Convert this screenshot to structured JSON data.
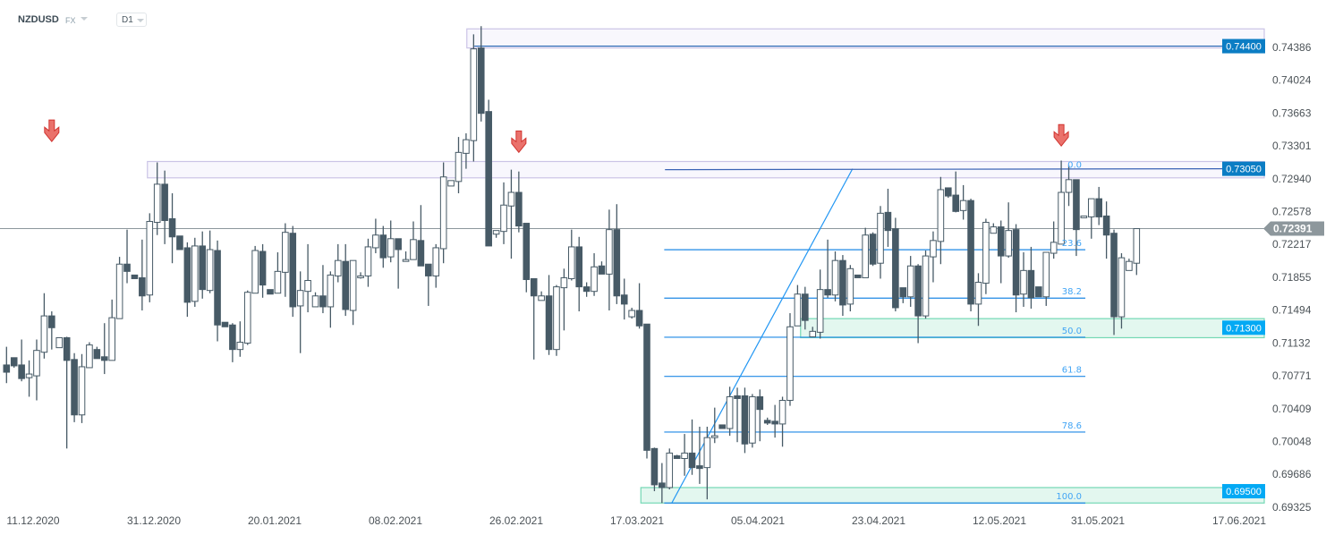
{
  "header": {
    "symbol": "NZDUSD",
    "market": "FX",
    "timeframe": "D1"
  },
  "colors": {
    "bear": "#475a66",
    "bull_fill": "#ffffff",
    "fib": "#1e88e5",
    "fib_label": "#42a5f5",
    "resistance_zone": "#f8f7fd",
    "resistance_stroke": "#cbc4e6",
    "support_zone": "#e3f7ef",
    "support_stroke": "#74d8b4",
    "level_dark_blue": "#0b7dc4",
    "level_light_blue": "#03a9f4",
    "current_price": "#8d979c",
    "arrow": "#e8625c"
  },
  "chart_data": {
    "type": "candlestick",
    "title": "",
    "y_ticks": [
      "0.74386",
      "0.74024",
      "0.73663",
      "0.73301",
      "0.72940",
      "0.72578",
      "0.72217",
      "0.71855",
      "0.71494",
      "0.71132",
      "0.70771",
      "0.70409",
      "0.70048",
      "0.69686",
      "0.69325"
    ],
    "ylim": [
      0.69325,
      0.74386
    ],
    "x_ticks": [
      {
        "label": "11.12.2020",
        "bar": 3.5
      },
      {
        "label": "31.12.2020",
        "bar": 19.6
      },
      {
        "label": "20.01.2021",
        "bar": 35.6
      },
      {
        "label": "08.02.2021",
        "bar": 51.6
      },
      {
        "label": "26.02.2021",
        "bar": 67.7
      },
      {
        "label": "17.03.2021",
        "bar": 83.7
      },
      {
        "label": "05.04.2021",
        "bar": 99.7
      },
      {
        "label": "23.04.2021",
        "bar": 115.8
      },
      {
        "label": "12.05.2021",
        "bar": 131.8
      },
      {
        "label": "31.05.2021",
        "bar": 144.9
      },
      {
        "label": "17.06.2021",
        "bar": 163.6
      }
    ],
    "ohlc": [
      [
        0.7089,
        0.7109,
        0.7069,
        0.7081
      ],
      [
        0.7097,
        0.7097,
        0.7086,
        0.7088
      ],
      [
        0.7089,
        0.7117,
        0.7071,
        0.7074
      ],
      [
        0.7075,
        0.7094,
        0.7054,
        0.7079
      ],
      [
        0.7077,
        0.7117,
        0.705,
        0.7105
      ],
      [
        0.7103,
        0.7168,
        0.7096,
        0.7143
      ],
      [
        0.7143,
        0.7148,
        0.7106,
        0.713
      ],
      [
        0.7108,
        0.7119,
        0.7108,
        0.7119
      ],
      [
        0.7119,
        0.712,
        0.6997,
        0.7094
      ],
      [
        0.7095,
        0.7102,
        0.7026,
        0.7034
      ],
      [
        0.7034,
        0.7101,
        0.7025,
        0.7087
      ],
      [
        0.7086,
        0.7114,
        0.7086,
        0.7111
      ],
      [
        0.7106,
        0.7109,
        0.7096,
        0.7096
      ],
      [
        0.7098,
        0.7135,
        0.7079,
        0.7094
      ],
      [
        0.7094,
        0.7161,
        0.7094,
        0.7141
      ],
      [
        0.714,
        0.7208,
        0.714,
        0.72
      ],
      [
        0.72,
        0.7238,
        0.7179,
        0.7192
      ],
      [
        0.7188,
        0.7188,
        0.7184,
        0.7184
      ],
      [
        0.7185,
        0.7227,
        0.7149,
        0.7165
      ],
      [
        0.7166,
        0.7256,
        0.7158,
        0.7247
      ],
      [
        0.7246,
        0.7312,
        0.7232,
        0.7288
      ],
      [
        0.7288,
        0.7303,
        0.7222,
        0.7248
      ],
      [
        0.725,
        0.7278,
        0.7201,
        0.723
      ],
      [
        0.7231,
        0.7231,
        0.7216,
        0.7216
      ],
      [
        0.7218,
        0.7224,
        0.7142,
        0.7158
      ],
      [
        0.7159,
        0.7229,
        0.7153,
        0.722
      ],
      [
        0.722,
        0.7236,
        0.7162,
        0.7172
      ],
      [
        0.7171,
        0.7237,
        0.7168,
        0.7216
      ],
      [
        0.7215,
        0.7226,
        0.7115,
        0.7133
      ],
      [
        0.7136,
        0.7136,
        0.7131,
        0.7131
      ],
      [
        0.7133,
        0.7135,
        0.7092,
        0.7106
      ],
      [
        0.7106,
        0.7137,
        0.7098,
        0.7114
      ],
      [
        0.7113,
        0.7171,
        0.7111,
        0.7169
      ],
      [
        0.7168,
        0.722,
        0.7168,
        0.7215
      ],
      [
        0.7214,
        0.7222,
        0.7163,
        0.7177
      ],
      [
        0.7172,
        0.7172,
        0.7167,
        0.7167
      ],
      [
        0.7168,
        0.7213,
        0.7168,
        0.7192
      ],
      [
        0.7191,
        0.7245,
        0.7164,
        0.7235
      ],
      [
        0.7234,
        0.7242,
        0.7142,
        0.7153
      ],
      [
        0.7154,
        0.7192,
        0.7102,
        0.7171
      ],
      [
        0.717,
        0.7222,
        0.7147,
        0.7182
      ],
      [
        0.7153,
        0.7169,
        0.7153,
        0.7165
      ],
      [
        0.7165,
        0.7199,
        0.7146,
        0.7153
      ],
      [
        0.7153,
        0.7192,
        0.713,
        0.7188
      ],
      [
        0.7187,
        0.7222,
        0.718,
        0.7204
      ],
      [
        0.7203,
        0.7222,
        0.7143,
        0.715
      ],
      [
        0.7149,
        0.7204,
        0.7133,
        0.7204
      ],
      [
        0.7185,
        0.7191,
        0.7184,
        0.7187
      ],
      [
        0.7187,
        0.7228,
        0.7175,
        0.7219
      ],
      [
        0.7218,
        0.725,
        0.7212,
        0.7232
      ],
      [
        0.7232,
        0.7242,
        0.7196,
        0.7207
      ],
      [
        0.7208,
        0.7248,
        0.7202,
        0.7228
      ],
      [
        0.7228,
        0.7228,
        0.7173,
        0.7216
      ],
      [
        0.7203,
        0.7214,
        0.7203,
        0.7205
      ],
      [
        0.7205,
        0.7247,
        0.7205,
        0.7227
      ],
      [
        0.7226,
        0.7265,
        0.7198,
        0.7198
      ],
      [
        0.72,
        0.72,
        0.7154,
        0.7187
      ],
      [
        0.7187,
        0.7222,
        0.7174,
        0.7218
      ],
      [
        0.7217,
        0.7312,
        0.7201,
        0.7296
      ],
      [
        0.7286,
        0.7292,
        0.7286,
        0.7292
      ],
      [
        0.7291,
        0.734,
        0.7278,
        0.7323
      ],
      [
        0.7322,
        0.7344,
        0.7305,
        0.7337
      ],
      [
        0.7336,
        0.7453,
        0.7313,
        0.7437
      ],
      [
        0.7438,
        0.7462,
        0.7357,
        0.7366
      ],
      [
        0.7368,
        0.7381,
        0.722,
        0.722
      ],
      [
        0.7233,
        0.7237,
        0.7229,
        0.7237
      ],
      [
        0.7236,
        0.729,
        0.7222,
        0.7265
      ],
      [
        0.7264,
        0.7304,
        0.7206,
        0.7279
      ],
      [
        0.7279,
        0.7302,
        0.7235,
        0.7242
      ],
      [
        0.7245,
        0.7245,
        0.7169,
        0.7183
      ],
      [
        0.7184,
        0.7184,
        0.7095,
        0.7165
      ],
      [
        0.716,
        0.717,
        0.716,
        0.7165
      ],
      [
        0.7165,
        0.7188,
        0.71,
        0.7106
      ],
      [
        0.7106,
        0.7177,
        0.7099,
        0.7175
      ],
      [
        0.7174,
        0.7195,
        0.7127,
        0.7185
      ],
      [
        0.7184,
        0.7238,
        0.7182,
        0.7219
      ],
      [
        0.7219,
        0.723,
        0.7148,
        0.7175
      ],
      [
        0.7175,
        0.718,
        0.7164,
        0.717
      ],
      [
        0.717,
        0.7212,
        0.7165,
        0.7197
      ],
      [
        0.7198,
        0.7203,
        0.7189,
        0.7189
      ],
      [
        0.7189,
        0.726,
        0.7149,
        0.7238
      ],
      [
        0.7238,
        0.7266,
        0.7156,
        0.7165
      ],
      [
        0.7166,
        0.7184,
        0.7139,
        0.7156
      ],
      [
        0.7142,
        0.7152,
        0.714,
        0.7149
      ],
      [
        0.7149,
        0.7179,
        0.7129,
        0.7132
      ],
      [
        0.7134,
        0.7134,
        0.6986,
        0.6995
      ],
      [
        0.6997,
        0.6998,
        0.695,
        0.6957
      ],
      [
        0.6959,
        0.6981,
        0.6937,
        0.6954
      ],
      [
        0.6954,
        0.6997,
        0.6952,
        0.6992
      ],
      [
        0.6989,
        0.699,
        0.6986,
        0.6986
      ],
      [
        0.6986,
        0.7013,
        0.6967,
        0.6992
      ],
      [
        0.6992,
        0.7029,
        0.6968,
        0.6976
      ],
      [
        0.6978,
        0.7021,
        0.6958,
        0.6975
      ],
      [
        0.6976,
        0.7021,
        0.6941,
        0.7009
      ],
      [
        0.7009,
        0.7042,
        0.7003,
        0.7011
      ],
      [
        0.7023,
        0.7023,
        0.7019,
        0.7019
      ],
      [
        0.7019,
        0.7065,
        0.7011,
        0.7054
      ],
      [
        0.7055,
        0.7064,
        0.7004,
        0.7052
      ],
      [
        0.7055,
        0.7064,
        0.6992,
        0.7002
      ],
      [
        0.7003,
        0.7057,
        0.6998,
        0.7054
      ],
      [
        0.7054,
        0.7062,
        0.7005,
        0.704
      ],
      [
        0.7028,
        0.7031,
        0.7023,
        0.7025
      ],
      [
        0.7027,
        0.7045,
        0.7009,
        0.7024
      ],
      [
        0.7024,
        0.7054,
        0.6999,
        0.705
      ],
      [
        0.705,
        0.7146,
        0.7044,
        0.7131
      ],
      [
        0.7132,
        0.7177,
        0.7132,
        0.7167
      ],
      [
        0.7167,
        0.7175,
        0.7128,
        0.7138
      ],
      [
        0.712,
        0.7131,
        0.712,
        0.7126
      ],
      [
        0.7125,
        0.7194,
        0.7118,
        0.7172
      ],
      [
        0.7172,
        0.7227,
        0.7163,
        0.7166
      ],
      [
        0.7166,
        0.7214,
        0.7159,
        0.7204
      ],
      [
        0.7204,
        0.721,
        0.7143,
        0.7155
      ],
      [
        0.7156,
        0.7199,
        0.7148,
        0.7195
      ],
      [
        0.7188,
        0.7188,
        0.7185,
        0.7185
      ],
      [
        0.7185,
        0.724,
        0.7185,
        0.7232
      ],
      [
        0.7233,
        0.7235,
        0.7198,
        0.72
      ],
      [
        0.7201,
        0.7264,
        0.7184,
        0.7256
      ],
      [
        0.7257,
        0.7283,
        0.7219,
        0.7237
      ],
      [
        0.7239,
        0.7251,
        0.7148,
        0.7152
      ],
      [
        0.7174,
        0.7174,
        0.7157,
        0.7164
      ],
      [
        0.7164,
        0.7209,
        0.7153,
        0.7198
      ],
      [
        0.7198,
        0.72,
        0.7113,
        0.7143
      ],
      [
        0.7143,
        0.7215,
        0.714,
        0.7209
      ],
      [
        0.7208,
        0.7236,
        0.718,
        0.7226
      ],
      [
        0.7225,
        0.7296,
        0.72,
        0.7282
      ],
      [
        0.7284,
        0.7284,
        0.7273,
        0.7275
      ],
      [
        0.7276,
        0.7302,
        0.7257,
        0.7258
      ],
      [
        0.7259,
        0.7287,
        0.7249,
        0.727
      ],
      [
        0.727,
        0.7272,
        0.7148,
        0.7156
      ],
      [
        0.7156,
        0.719,
        0.7132,
        0.718
      ],
      [
        0.7179,
        0.725,
        0.7167,
        0.7246
      ],
      [
        0.7234,
        0.7245,
        0.7234,
        0.7241
      ],
      [
        0.7241,
        0.7248,
        0.7179,
        0.7209
      ],
      [
        0.7209,
        0.7268,
        0.7207,
        0.7237
      ],
      [
        0.7238,
        0.7244,
        0.7147,
        0.7166
      ],
      [
        0.7167,
        0.7213,
        0.7153,
        0.7193
      ],
      [
        0.7193,
        0.7219,
        0.7151,
        0.7163
      ],
      [
        0.7175,
        0.7175,
        0.7164,
        0.7164
      ],
      [
        0.7164,
        0.7213,
        0.7154,
        0.7213
      ],
      [
        0.7212,
        0.7247,
        0.7206,
        0.7224
      ],
      [
        0.7222,
        0.7314,
        0.7222,
        0.7279
      ],
      [
        0.7279,
        0.7309,
        0.7264,
        0.7293
      ],
      [
        0.7293,
        0.7293,
        0.7209,
        0.7238
      ],
      [
        0.7251,
        0.7253,
        0.7251,
        0.7253
      ],
      [
        0.7252,
        0.7272,
        0.7228,
        0.7272
      ],
      [
        0.7272,
        0.7285,
        0.7243,
        0.7252
      ],
      [
        0.7253,
        0.7269,
        0.7206,
        0.7232
      ],
      [
        0.7234,
        0.7238,
        0.7122,
        0.7142
      ],
      [
        0.7142,
        0.7212,
        0.7129,
        0.7207
      ],
      [
        0.7193,
        0.7206,
        0.7193,
        0.7203
      ],
      [
        0.7201,
        0.7239,
        0.7188,
        0.72391
      ]
    ],
    "zones": [
      {
        "kind": "resistance",
        "from_bar": 61.1,
        "top": 0.7459,
        "bottom": 0.7438
      },
      {
        "kind": "resistance",
        "from_bar": 18.7,
        "top": 0.7313,
        "bottom": 0.7295
      },
      {
        "kind": "support",
        "from_bar": 105.4,
        "top": 0.714,
        "bottom": 0.7119
      },
      {
        "kind": "support",
        "from_bar": 84.2,
        "top": 0.6954,
        "bottom": 0.6937
      }
    ],
    "levels": [
      {
        "price": 0.744,
        "label": "0.74400",
        "color": "dark",
        "from_bar": 62.1
      },
      {
        "price": 0.7305,
        "label": "0.73050",
        "color": "dark",
        "from_bar": 87.4
      },
      {
        "price": 0.713,
        "label": "0.71300",
        "color": "light"
      },
      {
        "price": 0.695,
        "label": "0.69500",
        "color": "light"
      }
    ],
    "current_price": {
      "price": 0.72391,
      "label": "0.72391"
    },
    "fibonacci": {
      "high": 0.7302,
      "low": 0.6937,
      "from_bar": 87.3,
      "to_bar": 143.2,
      "levels": [
        {
          "ratio": 0,
          "label": "0.0"
        },
        {
          "ratio": 0.236,
          "label": "23.6"
        },
        {
          "ratio": 0.382,
          "label": "38.2"
        },
        {
          "ratio": 0.5,
          "label": "50.0"
        },
        {
          "ratio": 0.618,
          "label": "61.8"
        },
        {
          "ratio": 0.786,
          "label": "78.6"
        },
        {
          "ratio": 1,
          "label": "100.0"
        }
      ]
    },
    "trendline": {
      "from": {
        "bar": 88.3,
        "price": 0.6937
      },
      "to": {
        "bar": 112.3,
        "price": 0.7305
      }
    },
    "arrows": [
      {
        "bar": 6,
        "price": 0.7335
      },
      {
        "bar": 68,
        "price": 0.7323
      },
      {
        "bar": 140,
        "price": 0.733
      }
    ]
  }
}
